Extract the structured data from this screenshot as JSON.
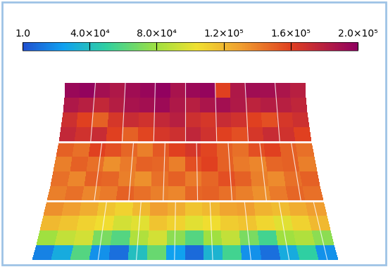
{
  "chart_data": {
    "type": "heatmap",
    "cells": [
      [
        195000,
        198000,
        190000,
        185000,
        192000,
        196000,
        199000,
        188000,
        194000,
        197000,
        160000,
        185000,
        192000,
        190000,
        186000,
        180000
      ],
      [
        185000,
        180000,
        175000,
        182000,
        188000,
        190000,
        193000,
        185000,
        180000,
        186000,
        190000,
        184000,
        178000,
        182000,
        180000,
        176000
      ],
      [
        170000,
        160000,
        150000,
        165000,
        172000,
        168000,
        175000,
        180000,
        170000,
        165000,
        172000,
        168000,
        160000,
        155000,
        165000,
        170000
      ],
      [
        175000,
        168000,
        172000,
        160000,
        150000,
        158000,
        165000,
        170000,
        176000,
        168000,
        160000,
        155000,
        165000,
        172000,
        168000,
        160000
      ],
      [
        150000,
        145000,
        160000,
        155000,
        148000,
        140000,
        152000,
        160000,
        165000,
        158000,
        150000,
        145000,
        155000,
        160000,
        150000,
        145000
      ],
      [
        140000,
        150000,
        145000,
        135000,
        142000,
        150000,
        148000,
        140000,
        155000,
        160000,
        150000,
        142000,
        138000,
        148000,
        150000,
        140000
      ],
      [
        145000,
        138000,
        150000,
        148000,
        140000,
        135000,
        145000,
        150000,
        142000,
        148000,
        155000,
        150000,
        140000,
        136000,
        145000,
        150000
      ],
      [
        140000,
        145000,
        138000,
        142000,
        150000,
        145000,
        140000,
        138000,
        148000,
        150000,
        145000,
        140000,
        135000,
        142000,
        148000,
        145000
      ],
      [
        135000,
        130000,
        125000,
        115000,
        110000,
        120000,
        130000,
        125000,
        115000,
        120000,
        128000,
        130000,
        122000,
        118000,
        125000,
        130000
      ],
      [
        120000,
        115000,
        110000,
        105000,
        95000,
        100000,
        115000,
        110000,
        100000,
        105000,
        112000,
        115000,
        108000,
        100000,
        110000,
        120000
      ],
      [
        80000,
        90000,
        95000,
        70000,
        60000,
        85000,
        95000,
        75000,
        60000,
        80000,
        90000,
        70000,
        55000,
        80000,
        85000,
        75000
      ],
      [
        15000,
        30000,
        60000,
        20000,
        10000,
        40000,
        65000,
        25000,
        8000,
        35000,
        55000,
        20000,
        10000,
        30000,
        50000,
        20000
      ]
    ],
    "colorbar_range": [
      1.0,
      200000
    ],
    "colorbar_ticks": [
      1.0,
      {
        "value": 40000,
        "label": "4.0×10⁴"
      },
      {
        "value": 80000,
        "label": "8.0×10⁴"
      },
      {
        "value": 120000,
        "label": "1.2×10⁵"
      },
      {
        "value": 160000,
        "label": "1.6×10⁵"
      },
      {
        "value": 200000,
        "label": "2.0×10⁵"
      }
    ]
  }
}
